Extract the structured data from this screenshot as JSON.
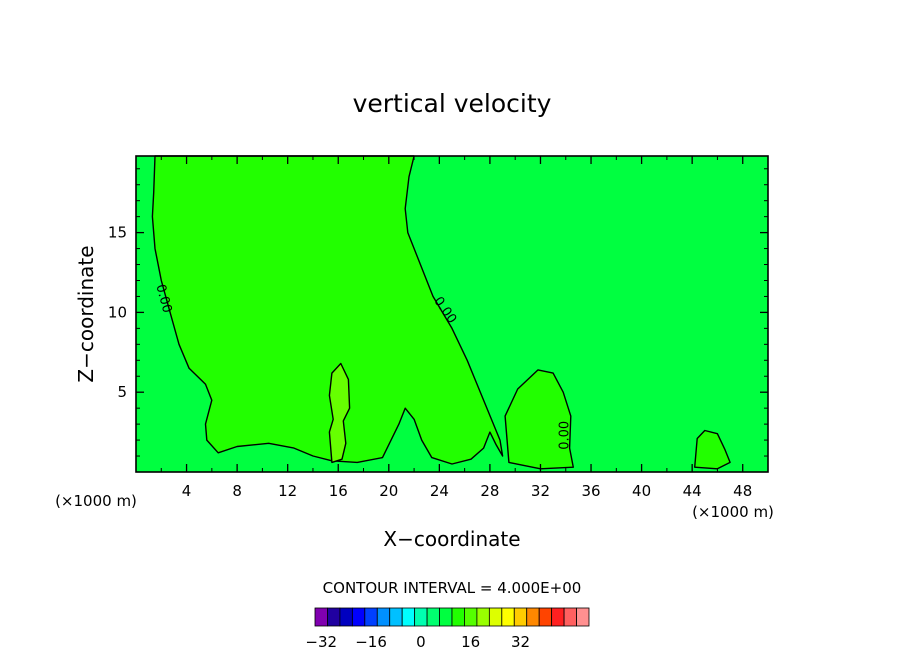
{
  "chart_data": {
    "type": "heatmap",
    "title": "vertical velocity",
    "xlabel": "X−coordinate",
    "ylabel": "Z−coordinate",
    "x_unit_label": "(×1000 m)",
    "x_unit_label_right": "(×1000 m)",
    "xlim": [
      0,
      50
    ],
    "ylim": [
      0,
      19.8
    ],
    "x_ticks": [
      "4",
      "8",
      "12",
      "16",
      "20",
      "24",
      "28",
      "32",
      "36",
      "40",
      "44",
      "48"
    ],
    "y_ticks": [
      "5",
      "10",
      "15"
    ],
    "contour_interval_text": "CONTOUR INTERVAL = 4.000E+00",
    "contour_label": "0.00",
    "background_field": "#00FF40",
    "regions": [
      {
        "name": "left updraft zone",
        "color": "#22FF00",
        "boundary": [
          [
            1.5,
            19.8
          ],
          [
            1.4,
            17.5
          ],
          [
            1.3,
            16.0
          ],
          [
            1.5,
            14.0
          ],
          [
            2.0,
            12.0
          ],
          [
            2.7,
            10.0
          ],
          [
            3.4,
            8.0
          ],
          [
            4.2,
            6.5
          ],
          [
            5.5,
            5.5
          ],
          [
            6.0,
            4.5
          ],
          [
            5.5,
            3.0
          ],
          [
            5.6,
            2.0
          ],
          [
            6.5,
            1.2
          ],
          [
            8.0,
            1.6
          ],
          [
            10.5,
            1.8
          ],
          [
            12.5,
            1.5
          ],
          [
            14.0,
            1.0
          ],
          [
            15.5,
            0.7
          ],
          [
            17.5,
            0.6
          ],
          [
            19.5,
            0.9
          ],
          [
            20.8,
            3.0
          ],
          [
            21.3,
            4.0
          ],
          [
            22.0,
            3.3
          ],
          [
            22.6,
            2.0
          ],
          [
            23.4,
            0.9
          ],
          [
            25.0,
            0.5
          ],
          [
            26.5,
            0.8
          ],
          [
            27.5,
            1.5
          ],
          [
            28.0,
            2.5
          ],
          [
            28.5,
            1.7
          ],
          [
            29.0,
            1.0
          ],
          [
            28.8,
            2.0
          ],
          [
            27.6,
            4.3
          ],
          [
            26.2,
            7.0
          ],
          [
            25.0,
            9.0
          ],
          [
            23.5,
            11.0
          ],
          [
            22.5,
            13.0
          ],
          [
            21.5,
            15.0
          ],
          [
            21.3,
            16.5
          ],
          [
            21.6,
            18.5
          ],
          [
            22.0,
            19.8
          ]
        ]
      },
      {
        "name": "right bulge zone",
        "color": "#22FF00",
        "boundary": [
          [
            29.5,
            0.6
          ],
          [
            29.2,
            3.5
          ],
          [
            30.2,
            5.2
          ],
          [
            31.8,
            6.4
          ],
          [
            33.0,
            6.2
          ],
          [
            33.8,
            5.0
          ],
          [
            34.4,
            3.5
          ],
          [
            34.3,
            1.5
          ],
          [
            34.6,
            0.3
          ],
          [
            32.0,
            0.2
          ]
        ]
      },
      {
        "name": "far right bump",
        "color": "#22FF00",
        "boundary": [
          [
            44.2,
            0.3
          ],
          [
            44.4,
            2.1
          ],
          [
            45.0,
            2.6
          ],
          [
            46.0,
            2.4
          ],
          [
            46.6,
            1.4
          ],
          [
            47.0,
            0.6
          ],
          [
            46.0,
            0.2
          ]
        ]
      },
      {
        "name": "central weak updraft",
        "color": "#66FF00",
        "boundary": [
          [
            15.5,
            0.6
          ],
          [
            15.3,
            2.5
          ],
          [
            15.6,
            3.3
          ],
          [
            15.3,
            4.8
          ],
          [
            15.5,
            6.2
          ],
          [
            16.2,
            6.8
          ],
          [
            16.8,
            5.8
          ],
          [
            16.9,
            4.0
          ],
          [
            16.4,
            3.2
          ],
          [
            16.6,
            1.8
          ],
          [
            16.3,
            0.8
          ]
        ]
      }
    ],
    "colorbar": {
      "colors": [
        "#8000B0",
        "#2000A0",
        "#0000C0",
        "#0000FF",
        "#0040FF",
        "#0090FF",
        "#00C0FF",
        "#00FFFF",
        "#00FFB0",
        "#00FF70",
        "#00FF40",
        "#22FF00",
        "#55FF00",
        "#99FF00",
        "#DDFF00",
        "#FFFF00",
        "#FFCC00",
        "#FF8800",
        "#FF4400",
        "#FF2020",
        "#FF6060",
        "#FF9090"
      ],
      "tick_labels": [
        "−32",
        "−16",
        "0",
        "16",
        "32"
      ]
    }
  }
}
